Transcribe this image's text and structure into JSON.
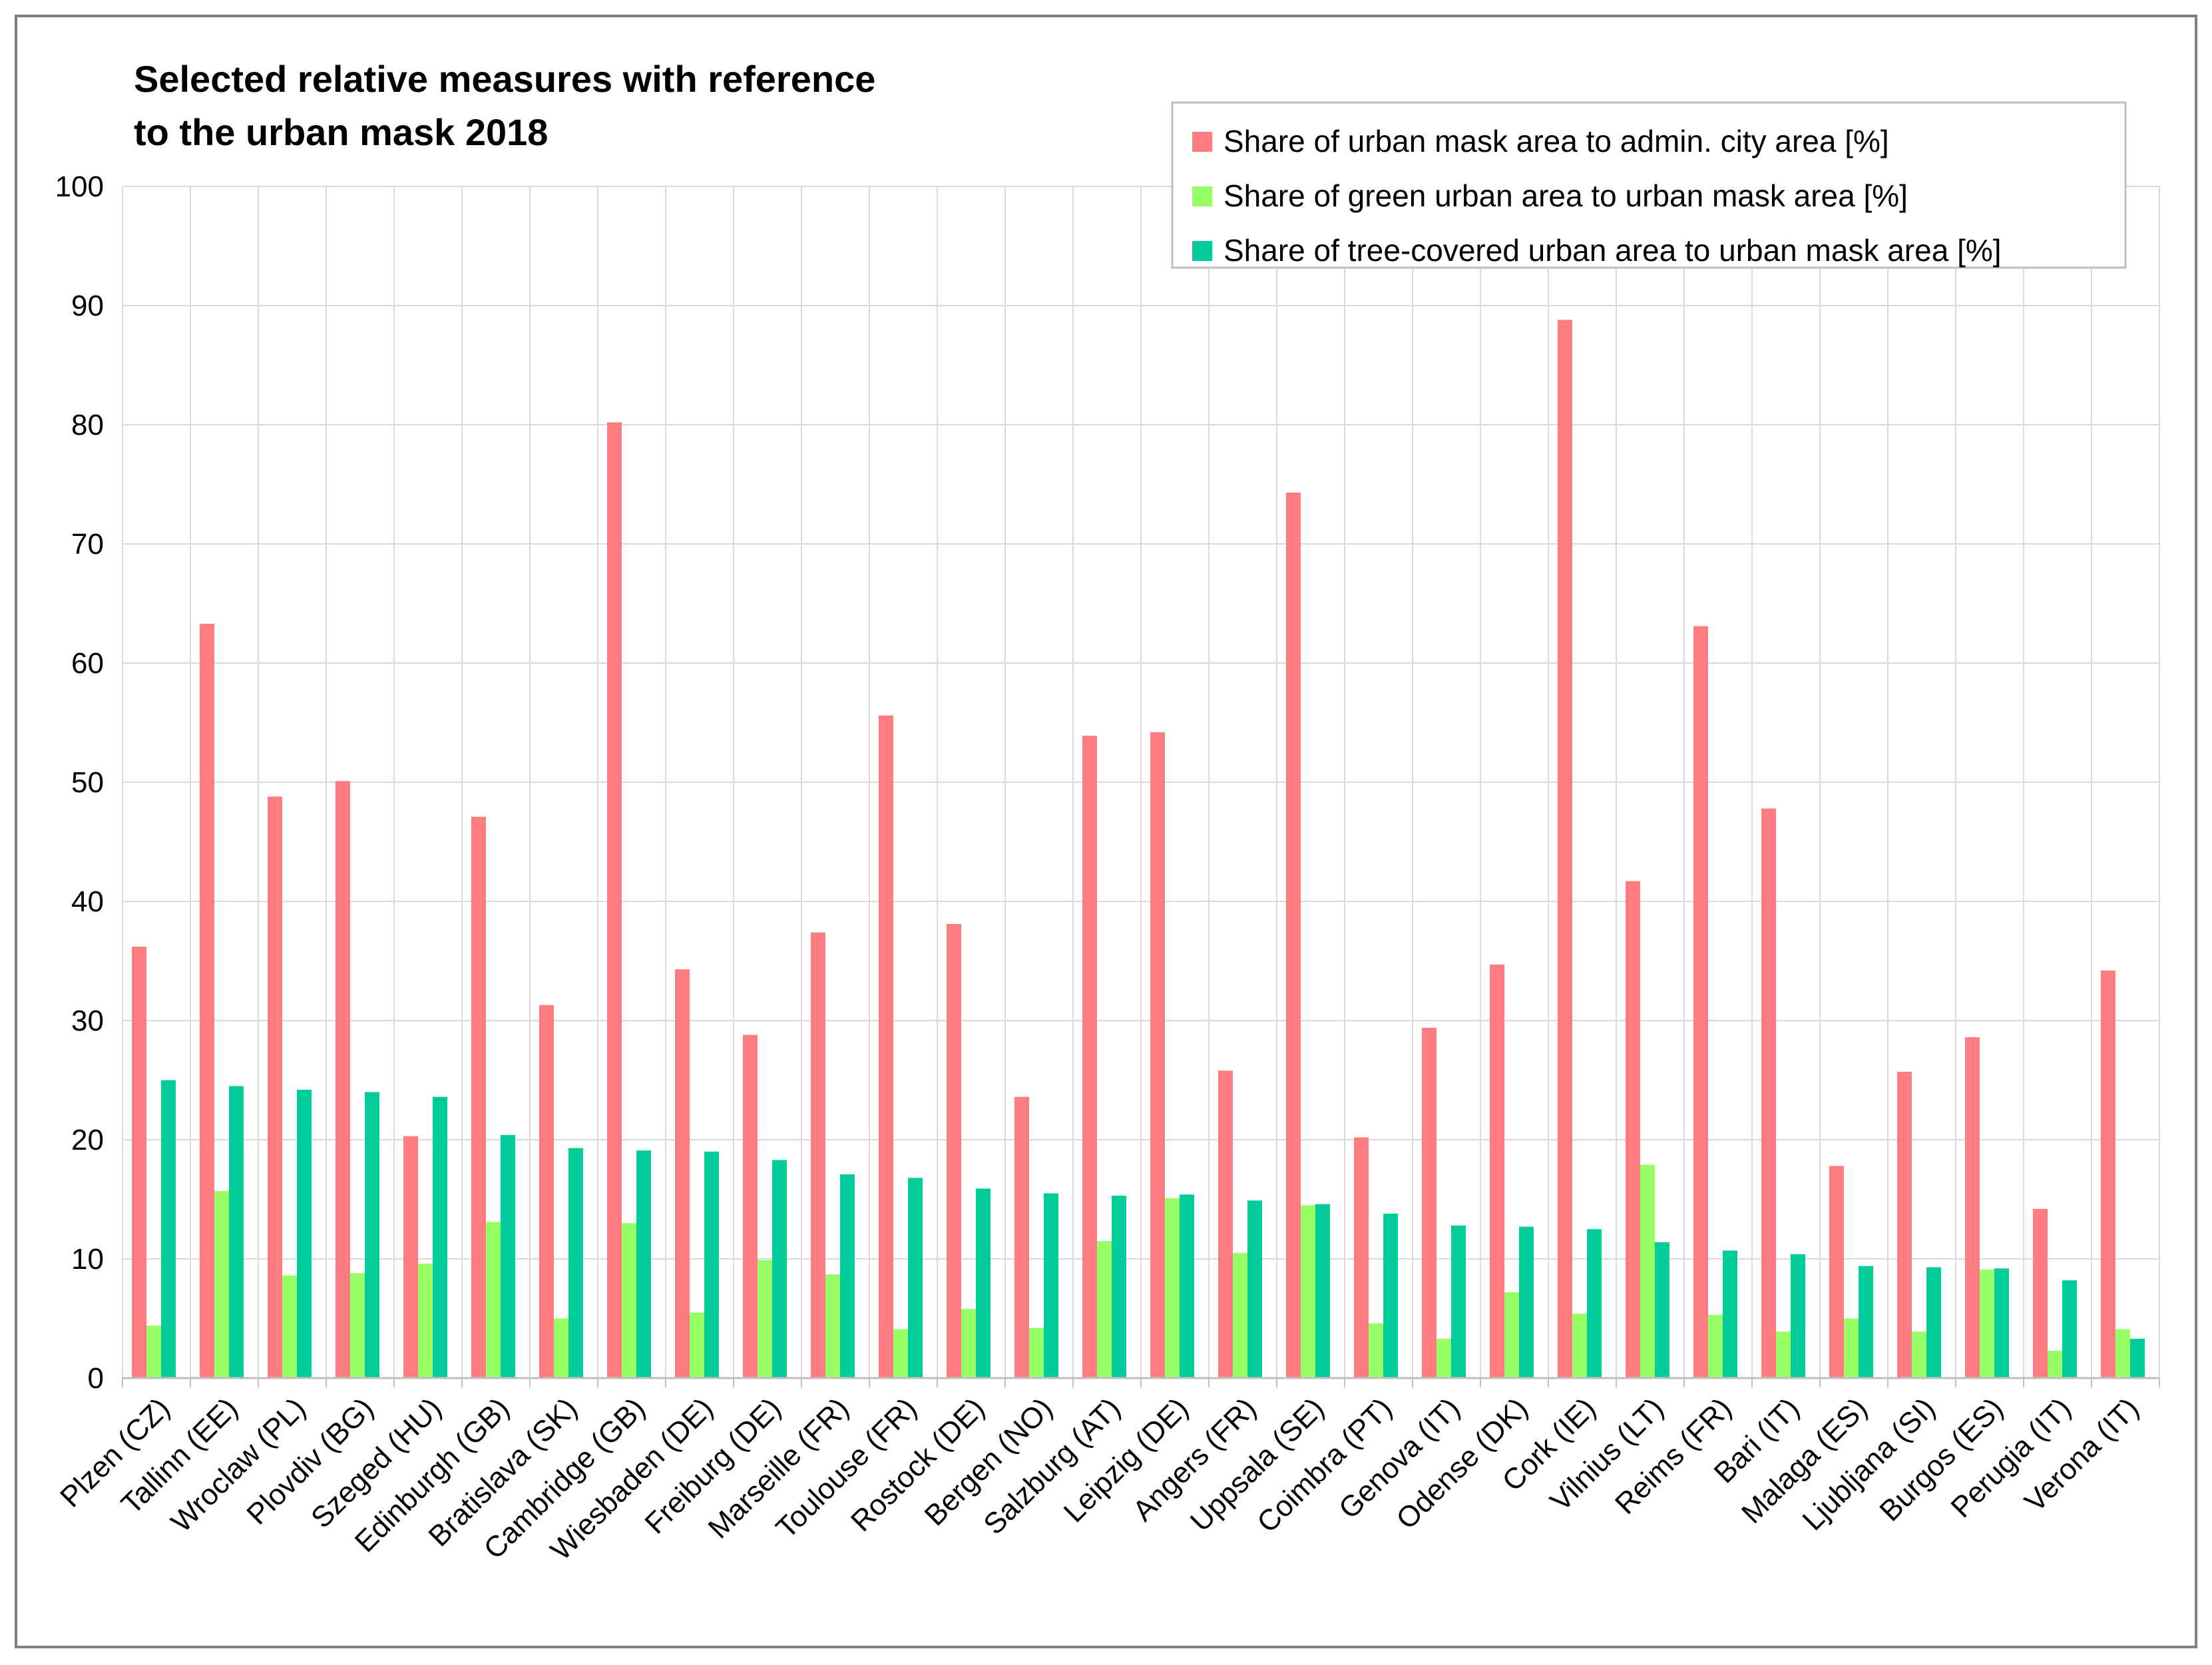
{
  "colors": {
    "series": [
      "#ff7c80",
      "#99ff66",
      "#00cc99"
    ],
    "grid": "#d9d9d9",
    "axis": "#bfbfbf",
    "frame": "#7f7f7f",
    "legend_border": "#bfbfbf"
  },
  "chart_data": {
    "type": "bar",
    "title_lines": [
      "Selected relative measures with reference",
      "to the urban mask 2018"
    ],
    "xlabel": "",
    "ylabel": "",
    "ylim": [
      0,
      100
    ],
    "yticks": [
      "0",
      "10",
      "20",
      "30",
      "40",
      "50",
      "60",
      "70",
      "80",
      "90",
      "100"
    ],
    "grid": true,
    "legend_position": "top-right",
    "categories": [
      "Plzen (CZ)",
      "Tallinn (EE)",
      "Wroclaw (PL)",
      "Plovdiv (BG)",
      "Szeged (HU)",
      "Edinburgh (GB)",
      "Bratislava (SK)",
      "Cambridge (GB)",
      "Wiesbaden (DE)",
      "Freiburg (DE)",
      "Marseille (FR)",
      "Toulouse (FR)",
      "Rostock (DE)",
      "Bergen (NO)",
      "Salzburg (AT)",
      "Leipzig (DE)",
      "Angers (FR)",
      "Uppsala (SE)",
      "Coimbra (PT)",
      "Genova (IT)",
      "Odense (DK)",
      "Cork (IE)",
      "Vilnius (LT)",
      "Reims (FR)",
      "Bari (IT)",
      "Malaga (ES)",
      "Ljubljana (SI)",
      "Burgos (ES)",
      "Perugia (IT)",
      "Verona (IT)"
    ],
    "series": [
      {
        "name": "Share of urban mask area to admin. city area [%]",
        "values": [
          36.2,
          63.3,
          48.8,
          50.1,
          20.3,
          47.1,
          31.3,
          80.2,
          34.3,
          28.8,
          37.4,
          55.6,
          38.1,
          23.6,
          53.9,
          54.2,
          25.8,
          74.3,
          20.2,
          29.4,
          34.7,
          88.8,
          41.7,
          63.1,
          47.8,
          17.8,
          25.7,
          28.6,
          14.2,
          34.2
        ]
      },
      {
        "name": "Share of green urban area to urban mask area [%]",
        "values": [
          4.4,
          15.7,
          8.6,
          8.8,
          9.6,
          13.1,
          5.0,
          13.0,
          5.5,
          9.9,
          8.7,
          4.1,
          5.8,
          4.2,
          11.5,
          15.1,
          10.5,
          14.5,
          4.6,
          3.3,
          7.2,
          5.4,
          17.9,
          5.3,
          3.9,
          5.0,
          3.9,
          9.1,
          2.3,
          4.1
        ]
      },
      {
        "name": "Share of tree-covered urban area to urban mask area [%]",
        "values": [
          25.0,
          24.5,
          24.2,
          24.0,
          23.6,
          20.4,
          19.3,
          19.1,
          19.0,
          18.3,
          17.1,
          16.8,
          15.9,
          15.5,
          15.3,
          15.4,
          14.9,
          14.6,
          13.8,
          12.8,
          12.7,
          12.5,
          11.4,
          10.7,
          10.4,
          9.4,
          9.3,
          9.2,
          8.2,
          3.3
        ]
      }
    ]
  }
}
